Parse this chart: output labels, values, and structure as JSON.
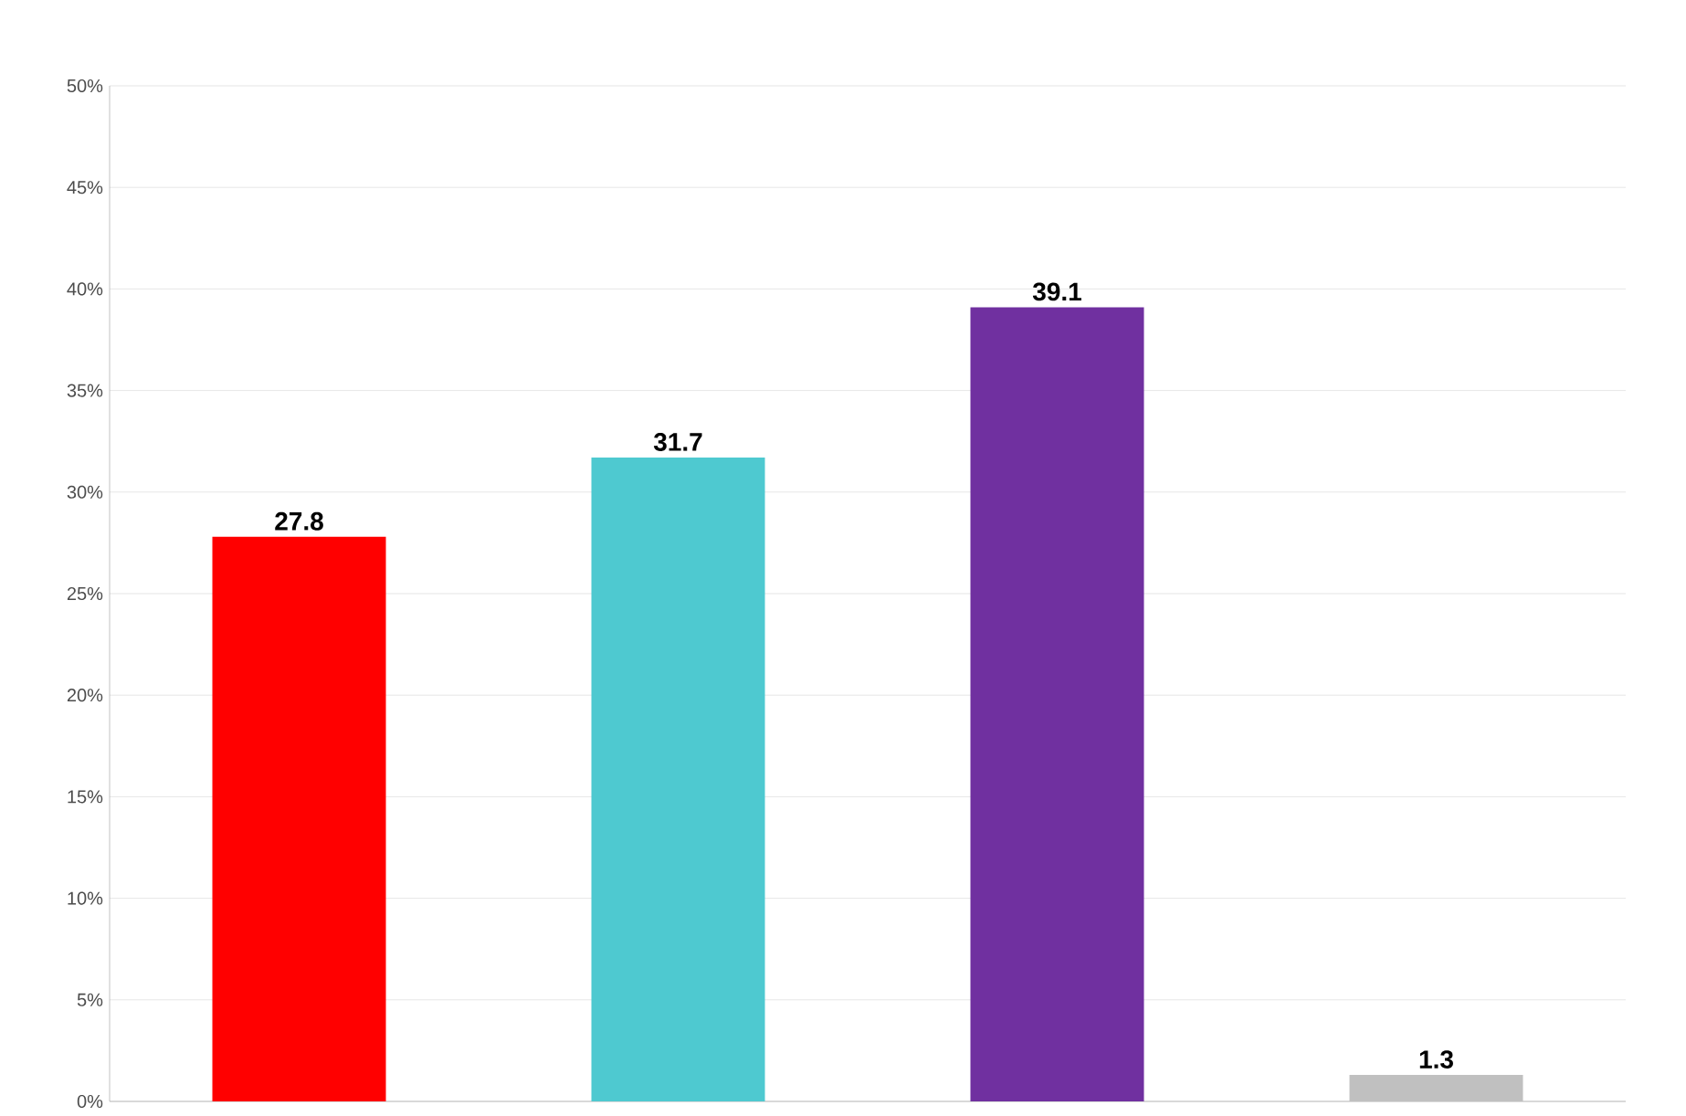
{
  "chart_data": {
    "type": "bar",
    "categories": [
      null,
      null,
      null,
      null
    ],
    "values": [
      27.8,
      31.7,
      39.1,
      1.3
    ],
    "colors": [
      "#ff0000",
      "#4ec9d0",
      "#7030a0",
      "#c0c0c0"
    ],
    "value_labels": [
      "27.8",
      "31.7",
      "39.1",
      "1.3"
    ],
    "ylim": [
      0,
      50
    ],
    "yticks": [
      {
        "value": 0,
        "label": "0%"
      },
      {
        "value": 5,
        "label": "5%"
      },
      {
        "value": 10,
        "label": "10%"
      },
      {
        "value": 15,
        "label": "15%"
      },
      {
        "value": 20,
        "label": "20%"
      },
      {
        "value": 25,
        "label": "25%"
      },
      {
        "value": 30,
        "label": "30%"
      },
      {
        "value": 35,
        "label": "35%"
      },
      {
        "value": 40,
        "label": "40%"
      },
      {
        "value": 45,
        "label": "45%"
      },
      {
        "value": 50,
        "label": "50%"
      }
    ],
    "grid": "y"
  }
}
